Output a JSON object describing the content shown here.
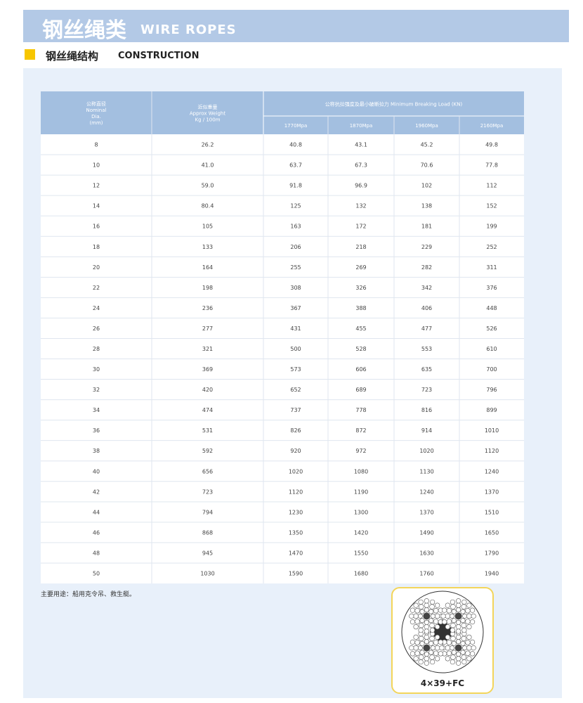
{
  "header": {
    "title_cn": "钢丝绳类",
    "title_en": "WIRE ROPES"
  },
  "section": {
    "title_cn": "钢丝绳结构",
    "title_en": "CONSTRUCTION"
  },
  "table": {
    "columns": [
      {
        "lines": [
          "公称直径",
          "Nominal",
          "Dia.",
          "(mm)"
        ]
      },
      {
        "lines": [
          "近似重量",
          "Approx Weight",
          "Kg / 100m"
        ]
      }
    ],
    "group_header": "公称抗拉强度及最小破断拉力 Minimum Breaking Load (KN)",
    "grades": [
      "1770Mpa",
      "1870Mpa",
      "1960Mpa",
      "2160Mpa"
    ],
    "rows": [
      [
        "8",
        "26.2",
        "40.8",
        "43.1",
        "45.2",
        "49.8"
      ],
      [
        "10",
        "41.0",
        "63.7",
        "67.3",
        "70.6",
        "77.8"
      ],
      [
        "12",
        "59.0",
        "91.8",
        "96.9",
        "102",
        "112"
      ],
      [
        "14",
        "80.4",
        "125",
        "132",
        "138",
        "152"
      ],
      [
        "16",
        "105",
        "163",
        "172",
        "181",
        "199"
      ],
      [
        "18",
        "133",
        "206",
        "218",
        "229",
        "252"
      ],
      [
        "20",
        "164",
        "255",
        "269",
        "282",
        "311"
      ],
      [
        "22",
        "198",
        "308",
        "326",
        "342",
        "376"
      ],
      [
        "24",
        "236",
        "367",
        "388",
        "406",
        "448"
      ],
      [
        "26",
        "277",
        "431",
        "455",
        "477",
        "526"
      ],
      [
        "28",
        "321",
        "500",
        "528",
        "553",
        "610"
      ],
      [
        "30",
        "369",
        "573",
        "606",
        "635",
        "700"
      ],
      [
        "32",
        "420",
        "652",
        "689",
        "723",
        "796"
      ],
      [
        "34",
        "474",
        "737",
        "778",
        "816",
        "899"
      ],
      [
        "36",
        "531",
        "826",
        "872",
        "914",
        "1010"
      ],
      [
        "38",
        "592",
        "920",
        "972",
        "1020",
        "1120"
      ],
      [
        "40",
        "656",
        "1020",
        "1080",
        "1130",
        "1240"
      ],
      [
        "42",
        "723",
        "1120",
        "1190",
        "1240",
        "1370"
      ],
      [
        "44",
        "794",
        "1230",
        "1300",
        "1370",
        "1510"
      ],
      [
        "46",
        "868",
        "1350",
        "1420",
        "1490",
        "1650"
      ],
      [
        "48",
        "945",
        "1470",
        "1550",
        "1630",
        "1790"
      ],
      [
        "50",
        "1030",
        "1590",
        "1680",
        "1760",
        "1940"
      ]
    ]
  },
  "note": "主要用途：船用克令吊、救生艇。",
  "figure": {
    "caption": "4×39+FC"
  }
}
